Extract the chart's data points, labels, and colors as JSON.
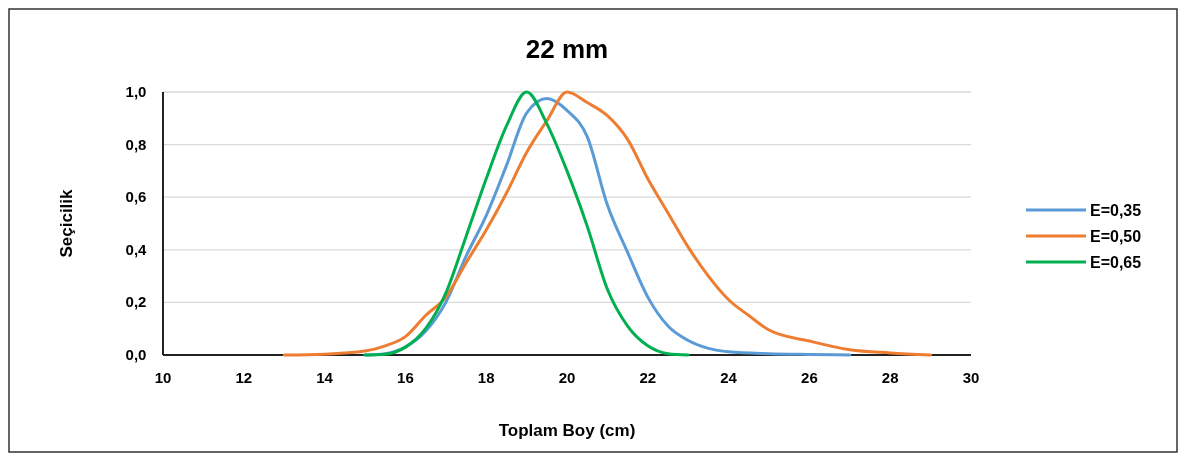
{
  "chart_data": {
    "type": "line",
    "title": "22 mm",
    "xlabel": "Toplam Boy (cm)",
    "ylabel": "Seçicilik",
    "xlim": [
      10,
      30
    ],
    "xticks": [
      10,
      12,
      14,
      16,
      18,
      20,
      22,
      24,
      26,
      28,
      30
    ],
    "ylim": [
      0,
      1
    ],
    "yticks": [
      {
        "value": 0,
        "label": "0,0"
      },
      {
        "value": 0.2,
        "label": "0,2"
      },
      {
        "value": 0.4,
        "label": "0,4"
      },
      {
        "value": 0.6,
        "label": "0,6"
      },
      {
        "value": 0.8,
        "label": "0,8"
      },
      {
        "value": 1,
        "label": "1,0"
      }
    ],
    "grid": "y",
    "legend": "right",
    "marker": "none",
    "line_style": "solid",
    "series": [
      {
        "name": "E=0,35",
        "color": "#5b9bd5",
        "x": [
          15,
          15.5,
          16,
          16.5,
          17,
          17.5,
          18,
          18.5,
          19,
          19.5,
          20,
          20.5,
          21,
          21.5,
          22,
          22.5,
          23,
          23.5,
          24,
          25,
          26,
          27
        ],
        "values": [
          0,
          0.005,
          0.03,
          0.09,
          0.2,
          0.375,
          0.53,
          0.72,
          0.92,
          0.975,
          0.93,
          0.83,
          0.57,
          0.39,
          0.22,
          0.11,
          0.055,
          0.025,
          0.012,
          0.005,
          0.002,
          0
        ]
      },
      {
        "name": "E=0,50",
        "color": "#ed7d31",
        "x": [
          13,
          14,
          15,
          15.5,
          16,
          16.5,
          17,
          17.5,
          18,
          18.5,
          19,
          19.5,
          20,
          20.5,
          21,
          21.5,
          22,
          22.5,
          23,
          23.5,
          24,
          24.5,
          25,
          26,
          27,
          28,
          29
        ],
        "values": [
          0,
          0.003,
          0.015,
          0.035,
          0.07,
          0.15,
          0.22,
          0.35,
          0.475,
          0.615,
          0.77,
          0.89,
          1,
          0.96,
          0.91,
          0.82,
          0.67,
          0.54,
          0.41,
          0.3,
          0.21,
          0.15,
          0.095,
          0.053,
          0.02,
          0.008,
          0
        ]
      },
      {
        "name": "E=0,65",
        "color": "#00b050",
        "x": [
          15,
          15.5,
          16,
          16.5,
          17,
          17.5,
          18,
          18.5,
          19,
          19.5,
          20,
          20.5,
          21,
          21.5,
          22,
          22.5,
          23
        ],
        "values": [
          0,
          0.003,
          0.03,
          0.1,
          0.235,
          0.45,
          0.67,
          0.87,
          1,
          0.88,
          0.7,
          0.49,
          0.25,
          0.11,
          0.035,
          0.005,
          0
        ]
      }
    ]
  }
}
